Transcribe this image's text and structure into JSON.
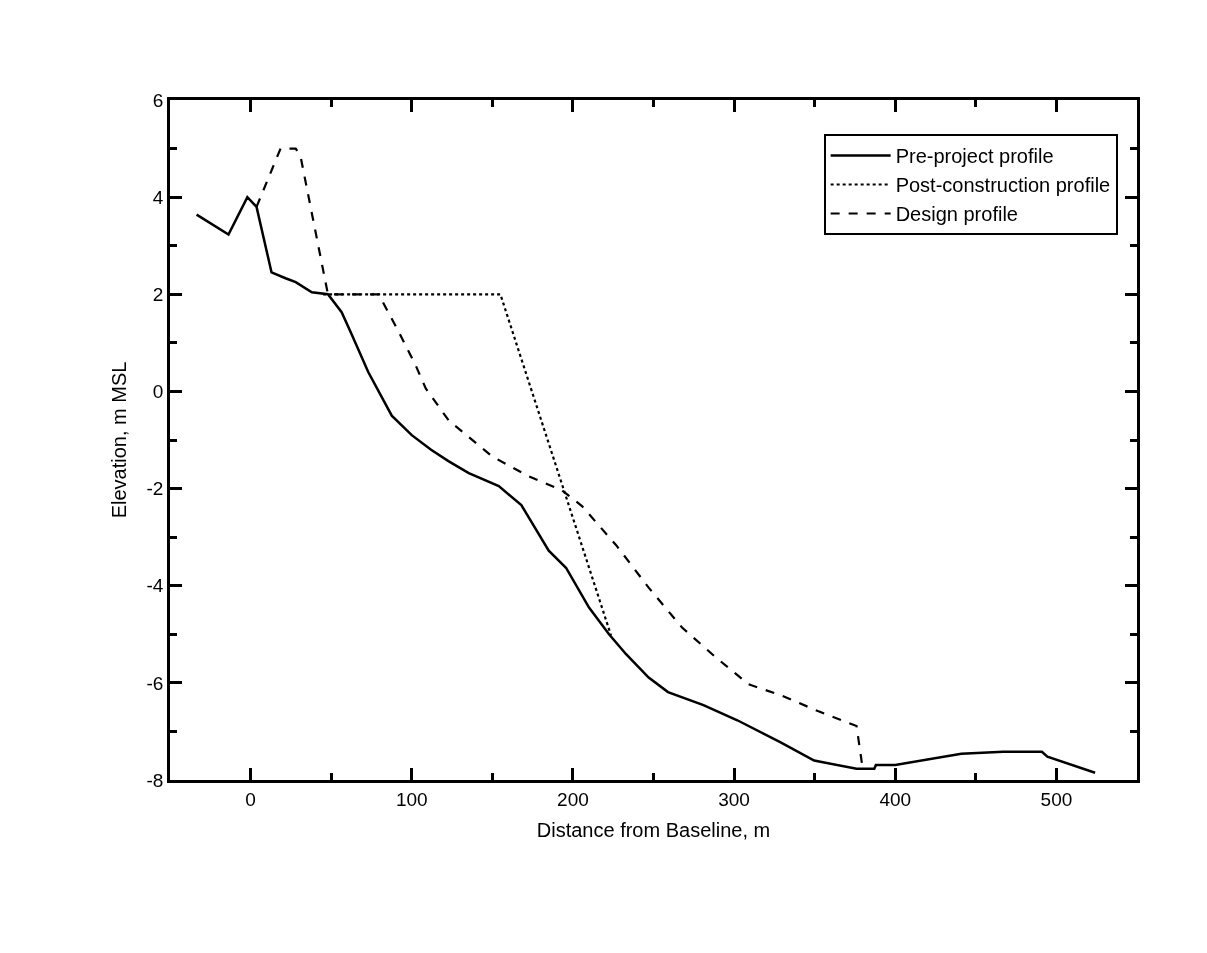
{
  "chart_data": {
    "type": "line",
    "xlabel": "Distance from Baseline, m",
    "ylabel": "Elevation, m MSL",
    "xlim": [
      -50,
      550
    ],
    "xticks": [
      0,
      100,
      200,
      300,
      400,
      500
    ],
    "ylim": [
      -8,
      6
    ],
    "yticks": [
      -8,
      -6,
      -4,
      -2,
      0,
      2,
      4,
      6
    ],
    "legend": "top right",
    "marker": "none",
    "series": [
      {
        "name": "Pre-project profile",
        "color": "#000000",
        "line_style": "solid",
        "x": [
          -33.5,
          -13.7,
          -2,
          3.7,
          13,
          21.7,
          28,
          38,
          48,
          56.5,
          62,
          73,
          87.6,
          100,
          112,
          123,
          135.4,
          154,
          168,
          185,
          195.7,
          210,
          222.4,
          233,
          247,
          259,
          281,
          302,
          328.6,
          349.7,
          376,
          387,
          388,
          400,
          441,
          467,
          491,
          494.4,
          524
        ],
        "values": [
          3.64,
          3.23,
          4.0,
          3.8,
          2.45,
          2.33,
          2.25,
          2.04,
          2.0,
          1.63,
          1.23,
          0.4,
          -0.5,
          -0.9,
          -1.2,
          -1.44,
          -1.68,
          -1.95,
          -2.34,
          -3.28,
          -3.63,
          -4.45,
          -5.0,
          -5.41,
          -5.89,
          -6.19,
          -6.46,
          -6.77,
          -7.22,
          -7.6,
          -7.77,
          -7.77,
          -7.69,
          -7.69,
          -7.46,
          -7.42,
          -7.42,
          -7.52,
          -7.85
        ]
      },
      {
        "name": "Post-construction profile",
        "color": "#000000",
        "line_style": "dotted",
        "x": [
          45,
          155,
          223.6
        ],
        "values": [
          2.0,
          2.0,
          -5.02
        ]
      },
      {
        "name": "Design profile",
        "color": "#000000",
        "line_style": "dashed",
        "x": [
          3.7,
          18.6,
          28,
          31,
          48,
          79.5,
          92,
          102.5,
          108.7,
          123,
          150,
          172.7,
          193,
          205.6,
          226.7,
          247,
          267.7,
          288.8,
          309,
          328.6,
          352,
          376,
          379.5
        ],
        "values": [
          3.8,
          5.0,
          5.0,
          4.84,
          2.0,
          2.0,
          1.22,
          0.53,
          0.06,
          -0.6,
          -1.34,
          -1.75,
          -2.03,
          -2.36,
          -3.16,
          -4.04,
          -4.86,
          -5.48,
          -6.03,
          -6.25,
          -6.58,
          -6.89,
          -7.7
        ]
      }
    ]
  }
}
